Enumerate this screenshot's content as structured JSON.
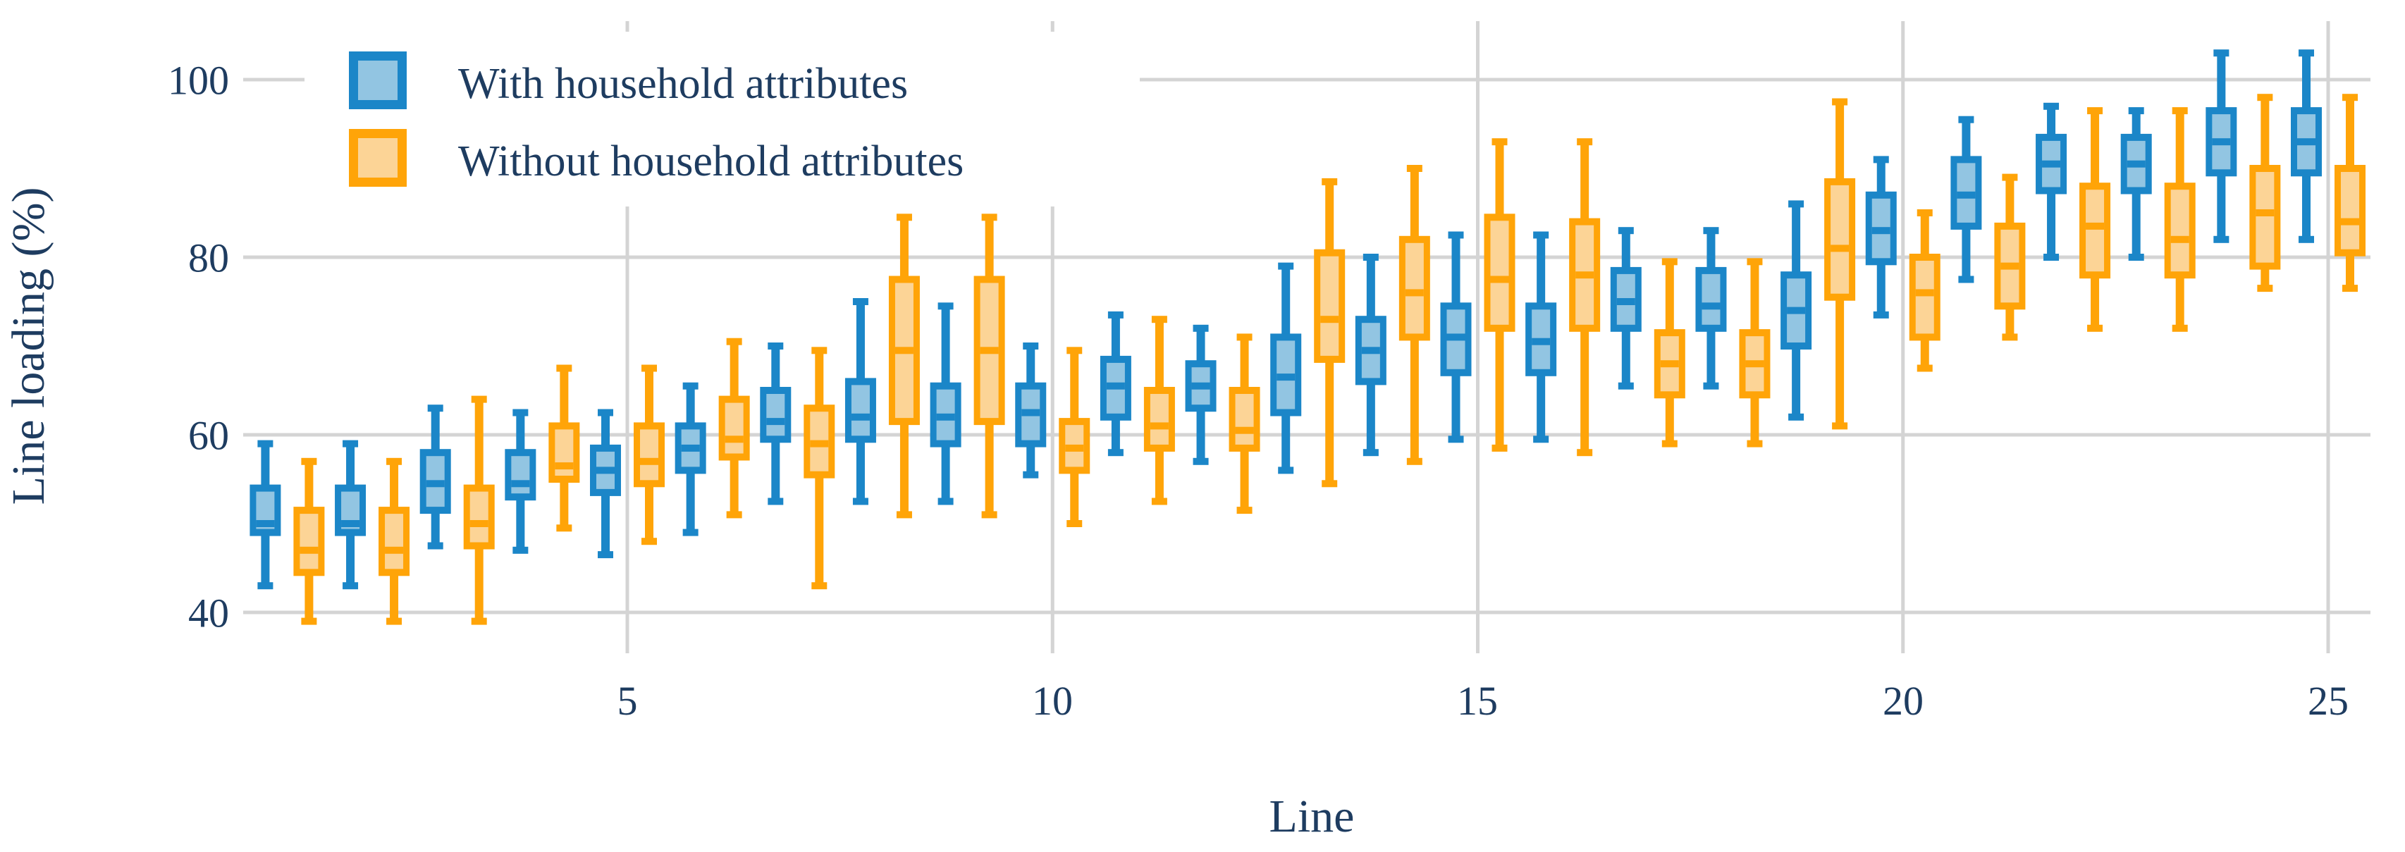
{
  "chart_data": {
    "type": "boxplot",
    "title": "",
    "xlabel": "Line",
    "ylabel": "Line loading (%)",
    "x_ticks": [
      5,
      10,
      15,
      20,
      25
    ],
    "y_ticks_top_to_bottom": [
      100,
      80,
      60,
      40
    ],
    "xlim": [
      0.5,
      25.8
    ],
    "ylim": [
      36,
      104.5
    ],
    "grid": true,
    "legend_position": "top-left",
    "gridline_color": "#d4d4d4",
    "text_color": "#1e3c60",
    "lines": [
      1,
      2,
      3,
      4,
      5,
      6,
      7,
      8,
      9,
      10,
      11,
      12,
      13,
      14,
      15,
      16,
      17,
      18,
      19,
      20,
      21,
      22,
      23,
      24,
      25
    ],
    "box_stats_order": [
      "whisker_low",
      "q1",
      "median",
      "q3",
      "whisker_high"
    ],
    "series": [
      {
        "name": "With household attributes",
        "edge_color": "#1b86c8",
        "fill_color": "#92c5e2",
        "values": [
          [
            43,
            49,
            50,
            54,
            59
          ],
          [
            43,
            49,
            50,
            54,
            59
          ],
          [
            47.5,
            51.5,
            54.5,
            58,
            63
          ],
          [
            47,
            53,
            54.5,
            58,
            62.5
          ],
          [
            46.5,
            53.5,
            56,
            58.5,
            62.5
          ],
          [
            49,
            56,
            58.5,
            61,
            65.5
          ],
          [
            52.5,
            59.5,
            61.5,
            65,
            70
          ],
          [
            52.5,
            59.5,
            62,
            66,
            75
          ],
          [
            52.5,
            59,
            62,
            65.5,
            74.5
          ],
          [
            55.5,
            59,
            62.5,
            65.5,
            70
          ],
          [
            58,
            62,
            65.5,
            68.5,
            73.5
          ],
          [
            57,
            63,
            65.5,
            68,
            72
          ],
          [
            56,
            62.5,
            66.5,
            71,
            79
          ],
          [
            58,
            66,
            69.5,
            73,
            80
          ],
          [
            59.5,
            67,
            71,
            74.5,
            82.5
          ],
          [
            59.5,
            67,
            70.5,
            74.5,
            82.5
          ],
          [
            65.5,
            72,
            75,
            78.5,
            83
          ],
          [
            65.5,
            72,
            74.5,
            78.5,
            83
          ],
          [
            62,
            70,
            74,
            78,
            86
          ],
          [
            73.5,
            79.5,
            83,
            87,
            91
          ],
          [
            77.5,
            83.5,
            87,
            91,
            95.5
          ],
          [
            80,
            87.5,
            90.5,
            93.5,
            97
          ],
          [
            80,
            87.5,
            90.5,
            93.5,
            96.5
          ],
          [
            82,
            89.5,
            93,
            96.5,
            103
          ],
          [
            82,
            89.5,
            93,
            96.5,
            103
          ]
        ]
      },
      {
        "name": "Without household attributes",
        "edge_color": "#ffa408",
        "fill_color": "#fcd496",
        "values": [
          [
            39,
            44.5,
            47,
            51.5,
            57
          ],
          [
            39,
            44.5,
            47,
            51.5,
            57
          ],
          [
            39,
            47.5,
            50,
            54,
            64
          ],
          [
            49.5,
            55,
            56.5,
            61,
            67.5
          ],
          [
            48,
            54.5,
            57,
            61,
            67.5
          ],
          [
            51,
            57.5,
            59.5,
            64,
            70.5
          ],
          [
            43,
            55.5,
            59,
            63,
            69.5
          ],
          [
            51,
            61.5,
            69.5,
            77.5,
            84.5
          ],
          [
            51,
            61.5,
            69.5,
            77.5,
            84.5
          ],
          [
            50,
            56,
            58.5,
            61.5,
            69.5
          ],
          [
            52.5,
            58.5,
            61,
            65,
            73
          ],
          [
            51.5,
            58.5,
            60.5,
            65,
            71
          ],
          [
            54.5,
            68.5,
            73,
            80.5,
            88.5
          ],
          [
            57,
            71,
            76,
            82,
            90
          ],
          [
            58.5,
            72,
            77.5,
            84.5,
            93
          ],
          [
            58,
            72,
            78,
            84,
            93
          ],
          [
            59,
            64.5,
            68,
            71.5,
            79.5
          ],
          [
            59,
            64.5,
            68,
            71.5,
            79.5
          ],
          [
            61,
            75.5,
            81,
            88.5,
            97.5
          ],
          [
            67.5,
            71,
            76,
            80,
            85
          ],
          [
            71,
            74.5,
            79,
            83.5,
            89
          ],
          [
            72,
            78,
            83.5,
            88,
            96.5
          ],
          [
            72,
            78,
            82,
            88,
            96.5
          ],
          [
            76.5,
            79,
            85,
            90,
            98
          ],
          [
            76.5,
            80.5,
            84,
            90,
            98
          ]
        ]
      }
    ]
  }
}
